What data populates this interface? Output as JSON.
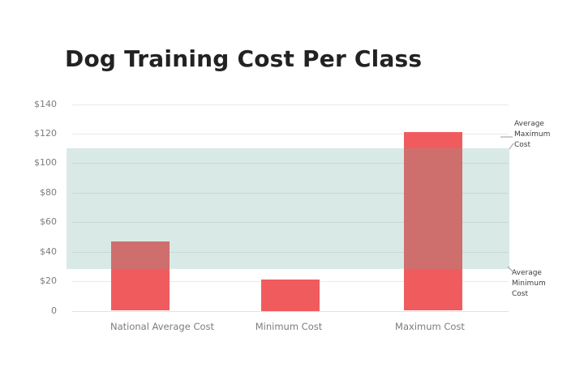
{
  "title": "Dog Training Cost Per Class",
  "chart_data": {
    "type": "bar",
    "title": "Dog Training Cost Per Class",
    "categories": [
      "National Average Cost",
      "Minimum Cost",
      "Maximum Cost"
    ],
    "values": [
      47,
      21,
      121
    ],
    "xlabel": "",
    "ylabel": "",
    "ylim": [
      0,
      140
    ],
    "ytick_values": [
      0,
      20,
      40,
      60,
      80,
      100,
      120,
      140
    ],
    "ytick_labels": [
      "0",
      "$20",
      "$40",
      "$60",
      "$80",
      "$100",
      "$120",
      "$140"
    ],
    "grid": true,
    "legend": "none",
    "band": {
      "from": 28,
      "to": 110,
      "label_top": "Average Maximum Cost",
      "label_bottom": "Average Minimum Cost"
    },
    "colors": {
      "bar": "#f05c5e",
      "band_overlay": "rgba(104,168,156,0.25)",
      "grid": "#e9e9e9",
      "axis_text": "#7c7c7c",
      "annotation_text": "#3d3d3d",
      "title_text": "#222222",
      "leader_line": "#9a9a9a"
    }
  }
}
